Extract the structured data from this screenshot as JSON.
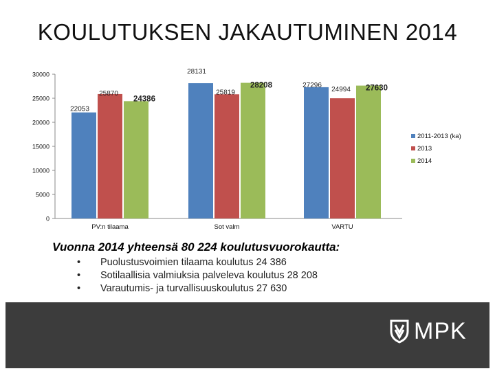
{
  "slide": {
    "title": "KOULUTUKSEN JAKAUTUMINEN 2014"
  },
  "summary": {
    "heading": "Vuonna 2014 yhteensä 80 224 koulutusvuorokautta:",
    "bullet_symbol": "•",
    "items": [
      "Puolustusvoimien tilaama koulutus 24 386",
      "Sotilaallisia valmiuksia palveleva koulutus 28 208",
      "Varautumis- ja turvallisuuskoulutus 27 630"
    ]
  },
  "logo": {
    "text": "MPK"
  },
  "colors": {
    "series1": "#4f81bd",
    "series2": "#c0504d",
    "series3": "#9bbb59",
    "footer": "#3c3c3c",
    "axis": "#888888"
  },
  "chart_data": {
    "type": "bar",
    "title": "",
    "xlabel": "",
    "ylabel": "",
    "categories": [
      "PV:n tilaama",
      "Sot valm",
      "VARTU"
    ],
    "series": [
      {
        "name": "2011-2013 (ka)",
        "values": [
          22053,
          28131,
          27296
        ],
        "labels": [
          "22053",
          "28131",
          "27296"
        ]
      },
      {
        "name": "2013",
        "values": [
          25870,
          25819,
          24994
        ],
        "labels": [
          "25870",
          "25819",
          "24994"
        ]
      },
      {
        "name": "2014",
        "values": [
          24386,
          28208,
          27630
        ],
        "labels": [
          "24386",
          "28208",
          "27630"
        ]
      }
    ],
    "ylim": [
      0,
      30000
    ],
    "yticks": [
      0,
      5000,
      10000,
      15000,
      20000,
      25000,
      30000
    ],
    "grid": false,
    "legend_position": "right"
  }
}
